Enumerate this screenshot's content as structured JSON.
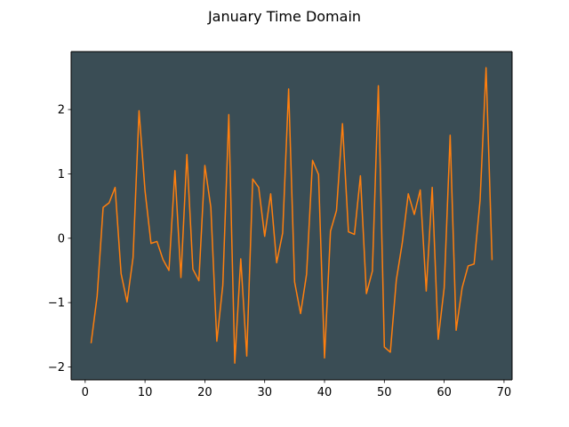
{
  "chart_data": {
    "type": "line",
    "title": "January Time Domain",
    "xlabel": "",
    "ylabel": "",
    "xlim": [
      -2.35,
      71.35
    ],
    "ylim": [
      -2.2,
      2.9
    ],
    "xticks": [
      0,
      10,
      20,
      30,
      40,
      50,
      60,
      70
    ],
    "xtick_labels": [
      "0",
      "10",
      "20",
      "30",
      "40",
      "50",
      "60",
      "70"
    ],
    "yticks": [
      -2,
      -1,
      0,
      1,
      2
    ],
    "ytick_labels": [
      "−2",
      "−1",
      "0",
      "1",
      "2"
    ],
    "grid": false,
    "plot_background": "#3a4d55",
    "figure_background": "#ffffff",
    "series": [
      {
        "color": "#ff7f0e",
        "x": [
          1,
          2,
          3,
          4,
          5,
          6,
          7,
          8,
          9,
          10,
          11,
          12,
          13,
          14,
          15,
          16,
          17,
          18,
          19,
          20,
          21,
          22,
          23,
          24,
          25,
          26,
          27,
          28,
          29,
          30,
          31,
          32,
          33,
          34,
          35,
          36,
          37,
          38,
          39,
          40,
          41,
          42,
          43,
          44,
          45,
          46,
          47,
          48,
          49,
          50,
          51,
          52,
          53,
          54,
          55,
          56,
          57,
          58,
          59,
          60,
          61,
          62,
          63,
          64,
          65,
          66,
          67,
          68
        ],
        "y": [
          -1.62,
          -0.9,
          0.48,
          0.55,
          0.79,
          -0.55,
          -0.99,
          -0.3,
          1.98,
          0.74,
          -0.08,
          -0.05,
          -0.33,
          -0.5,
          1.05,
          -0.61,
          1.3,
          -0.48,
          -0.66,
          1.13,
          0.48,
          -1.6,
          -0.73,
          1.92,
          -1.94,
          -0.32,
          -1.83,
          0.92,
          0.79,
          0.03,
          0.69,
          -0.38,
          0.08,
          2.32,
          -0.68,
          -1.17,
          -0.56,
          1.21,
          0.99,
          -1.86,
          0.11,
          0.43,
          1.78,
          0.1,
          0.06,
          0.97,
          -0.86,
          -0.51,
          2.37,
          -1.69,
          -1.77,
          -0.65,
          -0.07,
          0.69,
          0.37,
          0.75,
          -0.82,
          0.79,
          -1.57,
          -0.77,
          1.6,
          -1.43,
          -0.77,
          -0.43,
          -0.4,
          0.59,
          2.65,
          -0.33
        ]
      }
    ]
  }
}
